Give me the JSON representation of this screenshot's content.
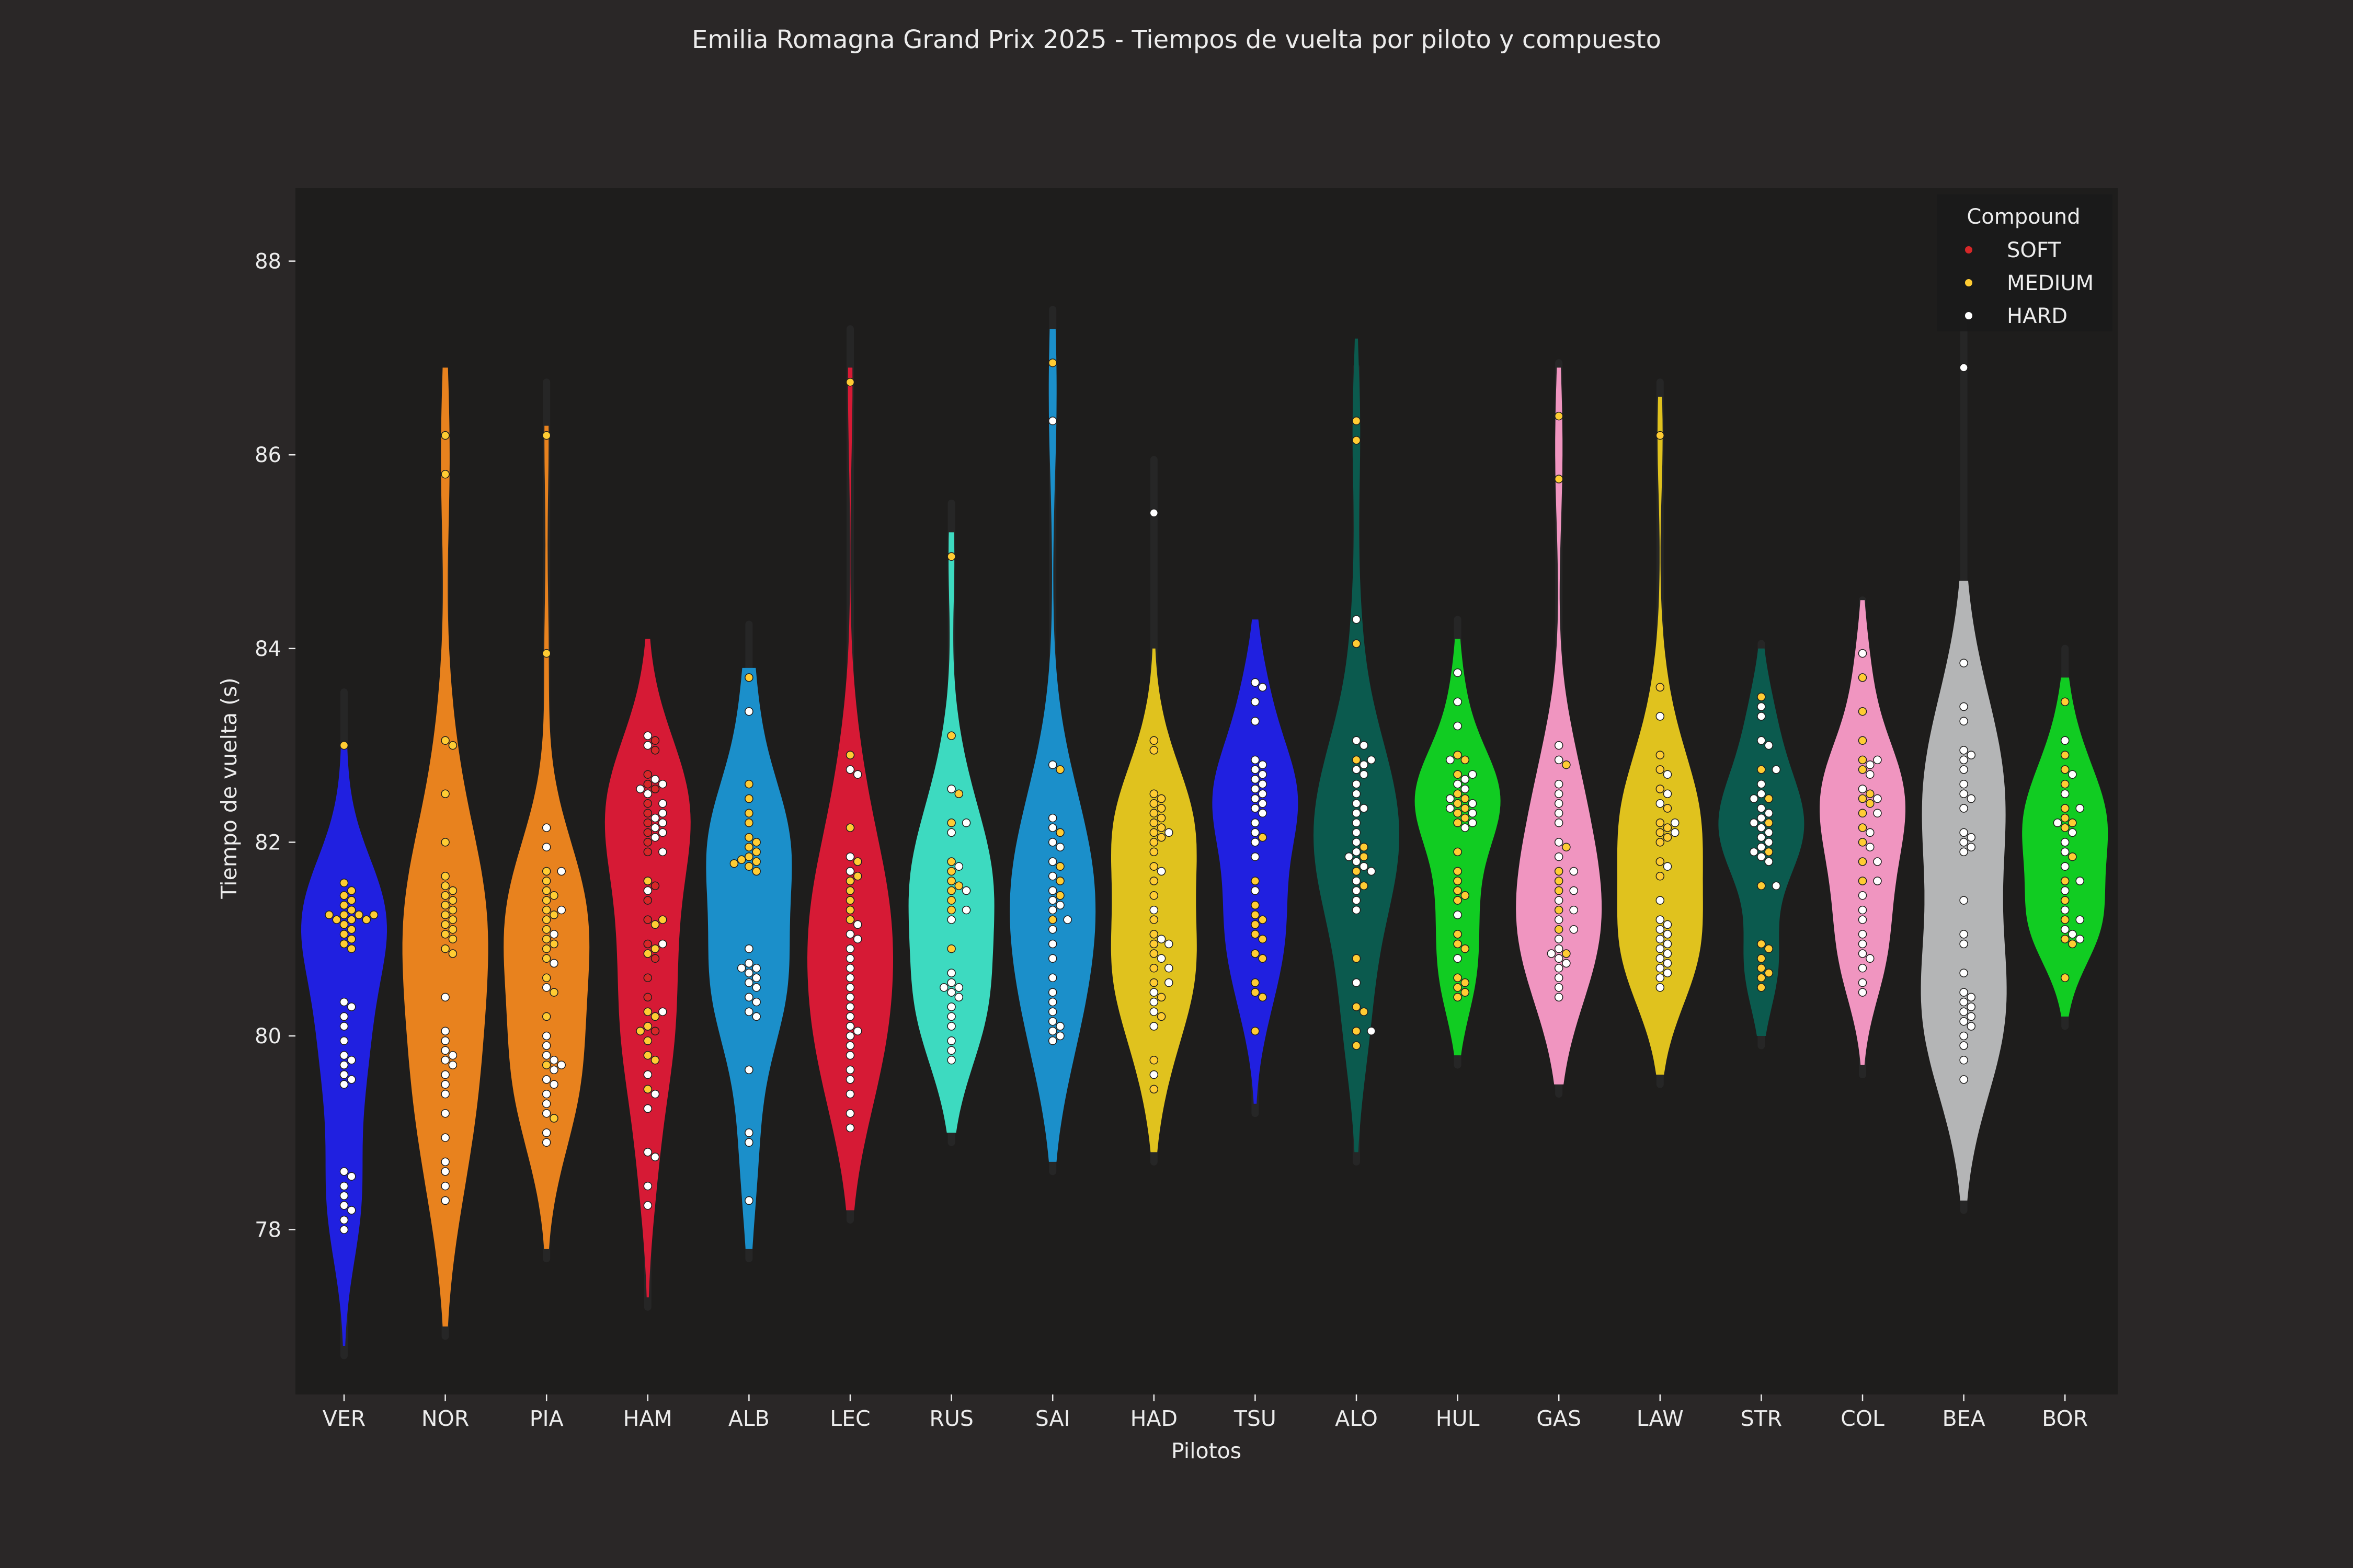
{
  "chart_data": {
    "type": "violin",
    "title": "Emilia Romagna Grand Prix 2025 - Tiempos de vuelta por piloto y compuesto",
    "xlabel": "Pilotos",
    "ylabel": "Tiempo de vuelta (s)",
    "ylim": [
      76.3,
      88.8
    ],
    "yticks": [
      "78",
      "80",
      "82",
      "84",
      "86",
      "88"
    ],
    "grid": false,
    "legend": {
      "title": "Compound",
      "placement": "top-right",
      "entries": [
        {
          "label": "SOFT",
          "color": "#d62728"
        },
        {
          "label": "MEDIUM",
          "color": "#ffcc33"
        },
        {
          "label": "HARD",
          "color": "#ffffff"
        }
      ]
    },
    "compound_colors": {
      "SOFT": "#d62728",
      "MEDIUM": "#ffcc33",
      "HARD": "#ffffff"
    },
    "colors": {
      "page": "#2a2727",
      "plot": "#1e1d1c",
      "text": "#ececec"
    },
    "drivers": [
      {
        "name": "VER",
        "color": "#2020e0",
        "range": [
          76.8,
          83.0
        ],
        "medium": [
          83.0,
          81.58,
          81.5,
          81.45,
          81.4,
          81.35,
          81.3,
          81.25,
          81.25,
          81.25,
          81.25,
          81.2,
          81.2,
          81.2,
          81.15,
          81.1,
          81.05,
          81.0,
          80.95,
          80.9
        ],
        "hard": [
          80.35,
          80.3,
          80.2,
          80.1,
          79.95,
          79.8,
          79.75,
          79.7,
          79.6,
          79.55,
          79.5,
          78.6,
          78.55,
          78.45,
          78.35,
          78.25,
          78.2,
          78.1,
          78.0
        ]
      },
      {
        "name": "NOR",
        "color": "#e8821e",
        "range": [
          77.0,
          86.9
        ],
        "medium": [
          86.2,
          85.8,
          83.05,
          83.0,
          82.5,
          82.0,
          81.65,
          81.55,
          81.5,
          81.45,
          81.4,
          81.35,
          81.3,
          81.25,
          81.2,
          81.15,
          81.1,
          81.05,
          81.0,
          80.9,
          80.85
        ],
        "hard": [
          80.4,
          80.05,
          79.95,
          79.85,
          79.8,
          79.75,
          79.7,
          79.6,
          79.5,
          79.4,
          79.2,
          78.95,
          78.7,
          78.6,
          78.45,
          78.3
        ]
      },
      {
        "name": "PIA",
        "color": "#e8821e",
        "range": [
          77.8,
          86.3
        ],
        "medium": [
          86.2,
          83.95,
          81.7,
          81.6,
          81.5,
          81.45,
          81.4,
          81.3,
          81.25,
          81.2,
          81.1,
          81.0,
          80.95,
          80.9,
          80.8,
          80.6,
          80.45,
          80.2,
          79.7,
          79.15
        ],
        "hard": [
          82.15,
          81.95,
          81.7,
          81.3,
          81.05,
          80.75,
          80.5,
          80.0,
          79.9,
          79.8,
          79.75,
          79.7,
          79.65,
          79.55,
          79.5,
          79.4,
          79.3,
          79.2,
          79.0,
          78.9
        ]
      },
      {
        "name": "HAM",
        "color": "#d61a35",
        "range": [
          77.3,
          84.1
        ],
        "soft": [
          83.05,
          82.95,
          82.7,
          82.6,
          82.55,
          82.4,
          82.3,
          82.2,
          82.1,
          82.0,
          81.9,
          81.55,
          81.4,
          81.2,
          80.95,
          80.8,
          80.6,
          80.4,
          80.05
        ],
        "medium": [
          81.6,
          81.2,
          81.15,
          80.9,
          80.85,
          80.25,
          80.2,
          80.1,
          80.05,
          79.95,
          79.8,
          79.75,
          79.45
        ],
        "hard": [
          83.1,
          83.0,
          82.65,
          82.6,
          82.55,
          82.5,
          82.4,
          82.3,
          82.25,
          82.2,
          82.15,
          82.1,
          82.05,
          81.9,
          81.5,
          80.95,
          80.25,
          79.6,
          79.4,
          79.25,
          78.8,
          78.75,
          78.45,
          78.25
        ]
      },
      {
        "name": "ALB",
        "color": "#1b8fca",
        "range": [
          77.8,
          83.8
        ],
        "medium": [
          83.7,
          82.6,
          82.45,
          82.3,
          82.2,
          82.05,
          82.0,
          81.95,
          81.9,
          81.85,
          81.82,
          81.8,
          81.78,
          81.75,
          81.7
        ],
        "hard": [
          83.35,
          80.9,
          80.75,
          80.7,
          80.7,
          80.65,
          80.6,
          80.55,
          80.5,
          80.4,
          80.35,
          80.25,
          80.2,
          79.65,
          79.0,
          78.9,
          78.3
        ]
      },
      {
        "name": "LEC",
        "color": "#d61a35",
        "range": [
          78.2,
          86.9
        ],
        "medium": [
          86.75,
          82.9,
          82.15,
          81.8,
          81.65,
          81.6,
          81.5,
          81.4,
          81.3,
          81.2
        ],
        "hard": [
          82.75,
          82.7,
          81.85,
          81.7,
          81.15,
          81.05,
          81.0,
          80.9,
          80.8,
          80.7,
          80.6,
          80.5,
          80.4,
          80.3,
          80.2,
          80.1,
          80.05,
          80.0,
          79.9,
          79.8,
          79.65,
          79.55,
          79.4,
          79.2,
          79.05
        ]
      },
      {
        "name": "RUS",
        "color": "#3ddac0",
        "range": [
          79.0,
          85.2
        ],
        "medium": [
          84.95,
          83.1,
          82.5,
          82.2,
          81.8,
          81.7,
          81.6,
          81.55,
          81.5,
          81.4,
          81.3,
          80.9
        ],
        "hard": [
          82.55,
          82.2,
          82.1,
          81.75,
          81.5,
          81.3,
          81.2,
          80.65,
          80.55,
          80.5,
          80.5,
          80.45,
          80.4,
          80.3,
          80.2,
          80.1,
          79.95,
          79.85,
          79.75
        ]
      },
      {
        "name": "SAI",
        "color": "#1b8fca",
        "range": [
          78.7,
          87.3
        ],
        "medium": [
          86.95,
          82.75,
          82.1,
          81.75,
          81.6,
          81.45,
          81.2
        ],
        "hard": [
          86.35,
          82.8,
          82.25,
          82.15,
          82.0,
          81.95,
          81.8,
          81.65,
          81.5,
          81.4,
          81.35,
          81.3,
          81.2,
          81.1,
          80.95,
          80.8,
          80.6,
          80.45,
          80.35,
          80.25,
          80.15,
          80.1,
          80.05,
          80.0,
          79.95
        ]
      },
      {
        "name": "HAD",
        "color": "#e0c21e",
        "range": [
          78.8,
          84.0
        ],
        "medium": [
          83.05,
          82.95,
          82.5,
          82.45,
          82.4,
          82.35,
          82.3,
          82.25,
          82.2,
          82.15,
          82.1,
          82.05,
          82.0,
          81.9,
          81.75,
          81.6,
          81.45,
          81.2,
          81.05,
          80.95,
          80.85,
          80.7,
          80.55,
          80.4,
          80.2,
          79.75,
          79.45
        ],
        "hard": [
          85.4,
          82.1,
          81.7,
          81.3,
          81.0,
          80.95,
          80.8,
          80.7,
          80.55,
          80.45,
          80.35,
          80.25,
          80.1,
          79.6
        ]
      },
      {
        "name": "TSU",
        "color": "#2020e0",
        "range": [
          79.3,
          84.3
        ],
        "medium": [
          82.05,
          81.6,
          81.35,
          81.25,
          81.2,
          81.15,
          81.05,
          81.0,
          80.85,
          80.8,
          80.55,
          80.45,
          80.4,
          80.05
        ],
        "hard": [
          83.65,
          83.6,
          83.45,
          83.25,
          82.85,
          82.8,
          82.75,
          82.7,
          82.65,
          82.6,
          82.55,
          82.5,
          82.45,
          82.4,
          82.35,
          82.3,
          82.2,
          82.1,
          82.0,
          81.85,
          81.5
        ]
      },
      {
        "name": "ALO",
        "color": "#0b5a4e",
        "range": [
          78.8,
          87.2
        ],
        "medium": [
          86.35,
          86.15,
          84.05,
          82.85,
          81.95,
          81.85,
          81.7,
          81.55,
          80.8,
          80.3,
          80.25,
          80.05,
          79.9
        ],
        "hard": [
          84.3,
          83.05,
          83.0,
          82.85,
          82.8,
          82.75,
          82.7,
          82.6,
          82.5,
          82.4,
          82.35,
          82.3,
          82.2,
          82.1,
          82.0,
          81.9,
          81.85,
          81.8,
          81.75,
          81.7,
          81.6,
          81.5,
          81.4,
          81.3,
          80.55,
          80.05
        ]
      },
      {
        "name": "HUL",
        "color": "#11cc22",
        "range": [
          79.8,
          84.1
        ],
        "medium": [
          82.9,
          82.85,
          82.7,
          82.5,
          82.45,
          82.4,
          82.35,
          82.3,
          82.25,
          82.2,
          81.9,
          81.7,
          81.6,
          81.5,
          81.45,
          81.4,
          81.05,
          80.95,
          80.9,
          80.6,
          80.55,
          80.5,
          80.45,
          80.4
        ],
        "hard": [
          83.75,
          83.45,
          83.2,
          82.85,
          82.7,
          82.65,
          82.6,
          82.55,
          82.45,
          82.4,
          82.35,
          82.3,
          82.2,
          82.15,
          81.25,
          80.8
        ]
      },
      {
        "name": "GAS",
        "color": "#f095c0",
        "range": [
          79.5,
          86.9
        ],
        "medium": [
          86.4,
          85.75,
          82.8,
          81.95,
          81.7,
          81.6,
          81.5,
          81.3,
          81.1,
          80.85
        ],
        "hard": [
          83.0,
          82.85,
          82.6,
          82.5,
          82.4,
          82.3,
          82.2,
          82.0,
          81.85,
          81.7,
          81.5,
          81.4,
          81.3,
          81.2,
          81.1,
          81.0,
          80.9,
          80.85,
          80.8,
          80.75,
          80.7,
          80.6,
          80.5,
          80.4
        ]
      },
      {
        "name": "LAW",
        "color": "#e0c21e",
        "range": [
          79.6,
          86.6
        ],
        "medium": [
          86.2,
          83.6,
          82.9,
          82.75,
          82.55,
          82.35,
          82.2,
          82.15,
          82.1,
          82.05,
          82.0,
          81.8,
          81.65
        ],
        "hard": [
          83.3,
          82.7,
          82.5,
          82.4,
          82.2,
          82.1,
          81.75,
          81.4,
          81.2,
          81.15,
          81.1,
          81.05,
          81.0,
          80.95,
          80.9,
          80.85,
          80.8,
          80.75,
          80.7,
          80.65,
          80.6,
          80.5
        ]
      },
      {
        "name": "STR",
        "color": "#0b5a4e",
        "range": [
          80.0,
          84.0
        ],
        "medium": [
          83.5,
          82.75,
          82.45,
          82.2,
          81.9,
          81.55,
          80.95,
          80.9,
          80.8,
          80.7,
          80.65,
          80.6,
          80.5
        ],
        "hard": [
          83.4,
          83.3,
          83.05,
          83.0,
          82.75,
          82.6,
          82.5,
          82.45,
          82.35,
          82.3,
          82.25,
          82.2,
          82.15,
          82.1,
          82.05,
          82.0,
          81.95,
          81.9,
          81.85,
          81.8,
          81.55
        ]
      },
      {
        "name": "COL",
        "color": "#f095c0",
        "range": [
          79.7,
          84.5
        ],
        "medium": [
          83.7,
          83.35,
          83.05,
          82.85,
          82.75,
          82.5,
          82.45,
          82.4,
          82.3,
          82.15,
          82.0,
          81.8,
          81.6
        ],
        "hard": [
          83.95,
          82.85,
          82.8,
          82.7,
          82.55,
          82.45,
          82.3,
          82.1,
          81.95,
          81.8,
          81.6,
          81.45,
          81.3,
          81.2,
          81.05,
          80.95,
          80.85,
          80.8,
          80.7,
          80.55,
          80.45
        ]
      },
      {
        "name": "BEA",
        "color": "#b4b5b6",
        "range": [
          78.3,
          84.7
        ],
        "hard": [
          86.9,
          83.85,
          83.4,
          83.25,
          82.95,
          82.9,
          82.85,
          82.75,
          82.6,
          82.5,
          82.45,
          82.35,
          82.1,
          82.05,
          82.0,
          81.95,
          81.9,
          81.4,
          81.05,
          80.95,
          80.65,
          80.45,
          80.4,
          80.35,
          80.3,
          80.25,
          80.2,
          80.15,
          80.1,
          80.0,
          79.9,
          79.75,
          79.55
        ]
      },
      {
        "name": "BOR",
        "color": "#11cc22",
        "range": [
          80.2,
          83.7
        ],
        "medium": [
          83.45,
          82.9,
          82.75,
          82.6,
          82.35,
          82.25,
          82.2,
          82.15,
          81.85,
          81.6,
          81.4,
          81.2,
          81.0,
          80.95,
          80.6
        ],
        "hard": [
          83.05,
          82.7,
          82.5,
          82.35,
          82.2,
          82.1,
          82.0,
          81.9,
          81.75,
          81.6,
          81.5,
          81.3,
          81.2,
          81.1,
          81.05,
          81.0
        ]
      }
    ]
  }
}
